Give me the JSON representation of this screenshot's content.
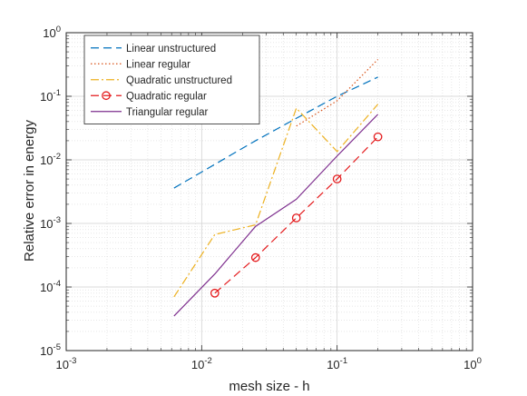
{
  "chart_data": {
    "type": "line",
    "xlabel": "mesh size - h",
    "ylabel": "Relative error in energy",
    "xscale": "log",
    "yscale": "log",
    "xlim": [
      0.001,
      1
    ],
    "ylim": [
      1e-05,
      1
    ],
    "grid": true,
    "minor_grid": true,
    "legend_position": "top-left",
    "x_ticks": [
      {
        "base": "10",
        "exp": "-3"
      },
      {
        "base": "10",
        "exp": "-2"
      },
      {
        "base": "10",
        "exp": "-1"
      },
      {
        "base": "10",
        "exp": "0"
      }
    ],
    "y_ticks": [
      {
        "base": "10",
        "exp": "-5"
      },
      {
        "base": "10",
        "exp": "-4"
      },
      {
        "base": "10",
        "exp": "-3"
      },
      {
        "base": "10",
        "exp": "-2"
      },
      {
        "base": "10",
        "exp": "-1"
      },
      {
        "base": "10",
        "exp": "0"
      }
    ],
    "series": [
      {
        "name": "Linear unstructured",
        "color": "#0072BD",
        "line_style": "dashed",
        "marker": "none",
        "x": [
          0.00625,
          0.0125,
          0.025,
          0.05,
          0.1,
          0.2
        ],
        "y": [
          0.0036,
          0.0085,
          0.02,
          0.045,
          0.1,
          0.2
        ]
      },
      {
        "name": "Linear regular",
        "color": "#D95319",
        "line_style": "dotted",
        "marker": "none",
        "x": [
          0.05,
          0.1,
          0.2
        ],
        "y": [
          0.034,
          0.085,
          0.38
        ]
      },
      {
        "name": "Quadratic unstructured",
        "color": "#EDB120",
        "line_style": "dashdot",
        "marker": "none",
        "x": [
          0.00625,
          0.0125,
          0.025,
          0.05,
          0.1,
          0.2
        ],
        "y": [
          7e-05,
          0.00067,
          0.00095,
          0.065,
          0.0135,
          0.075
        ]
      },
      {
        "name": "Quadratic regular",
        "color": "#E41A1C",
        "line_style": "dashed",
        "marker": "circle",
        "x": [
          0.0125,
          0.025,
          0.05,
          0.1,
          0.2
        ],
        "y": [
          8e-05,
          0.00029,
          0.00122,
          0.005,
          0.023
        ]
      },
      {
        "name": "Triangular regular",
        "color": "#7E2F8E",
        "line_style": "solid",
        "marker": "none",
        "x": [
          0.00625,
          0.0125,
          0.025,
          0.05,
          0.1,
          0.2
        ],
        "y": [
          3.5e-05,
          0.00016,
          0.0009,
          0.0024,
          0.0115,
          0.052
        ]
      }
    ]
  }
}
